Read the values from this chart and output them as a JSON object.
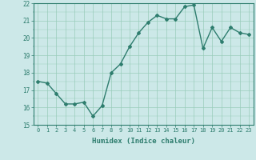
{
  "x": [
    0,
    1,
    2,
    3,
    4,
    5,
    6,
    7,
    8,
    9,
    10,
    11,
    12,
    13,
    14,
    15,
    16,
    17,
    18,
    19,
    20,
    21,
    22,
    23
  ],
  "y": [
    17.5,
    17.4,
    16.8,
    16.2,
    16.2,
    16.3,
    15.5,
    16.1,
    18.0,
    18.5,
    19.5,
    20.3,
    20.9,
    21.3,
    21.1,
    21.1,
    21.8,
    21.9,
    19.4,
    20.6,
    19.8,
    20.6,
    20.3,
    20.2
  ],
  "xlabel": "Humidex (Indice chaleur)",
  "ylim": [
    15,
    22
  ],
  "xlim": [
    -0.5,
    23.5
  ],
  "yticks": [
    15,
    16,
    17,
    18,
    19,
    20,
    21,
    22
  ],
  "xticks": [
    0,
    1,
    2,
    3,
    4,
    5,
    6,
    7,
    8,
    9,
    10,
    11,
    12,
    13,
    14,
    15,
    16,
    17,
    18,
    19,
    20,
    21,
    22,
    23
  ],
  "xtick_labels": [
    "0",
    "1",
    "2",
    "3",
    "4",
    "5",
    "6",
    "7",
    "8",
    "9",
    "10",
    "11",
    "12",
    "13",
    "14",
    "15",
    "16",
    "17",
    "18",
    "19",
    "20",
    "21",
    "22",
    "23"
  ],
  "line_color": "#2e7d6e",
  "marker": "D",
  "marker_size": 2.0,
  "background_color": "#cce8e8",
  "grid_color": "#99ccbb",
  "axis_color": "#2e7d6e",
  "tick_label_color": "#2e7d6e",
  "xlabel_color": "#2e7d6e",
  "linewidth": 1.0,
  "tick_fontsize": 5.0,
  "xlabel_fontsize": 6.5
}
